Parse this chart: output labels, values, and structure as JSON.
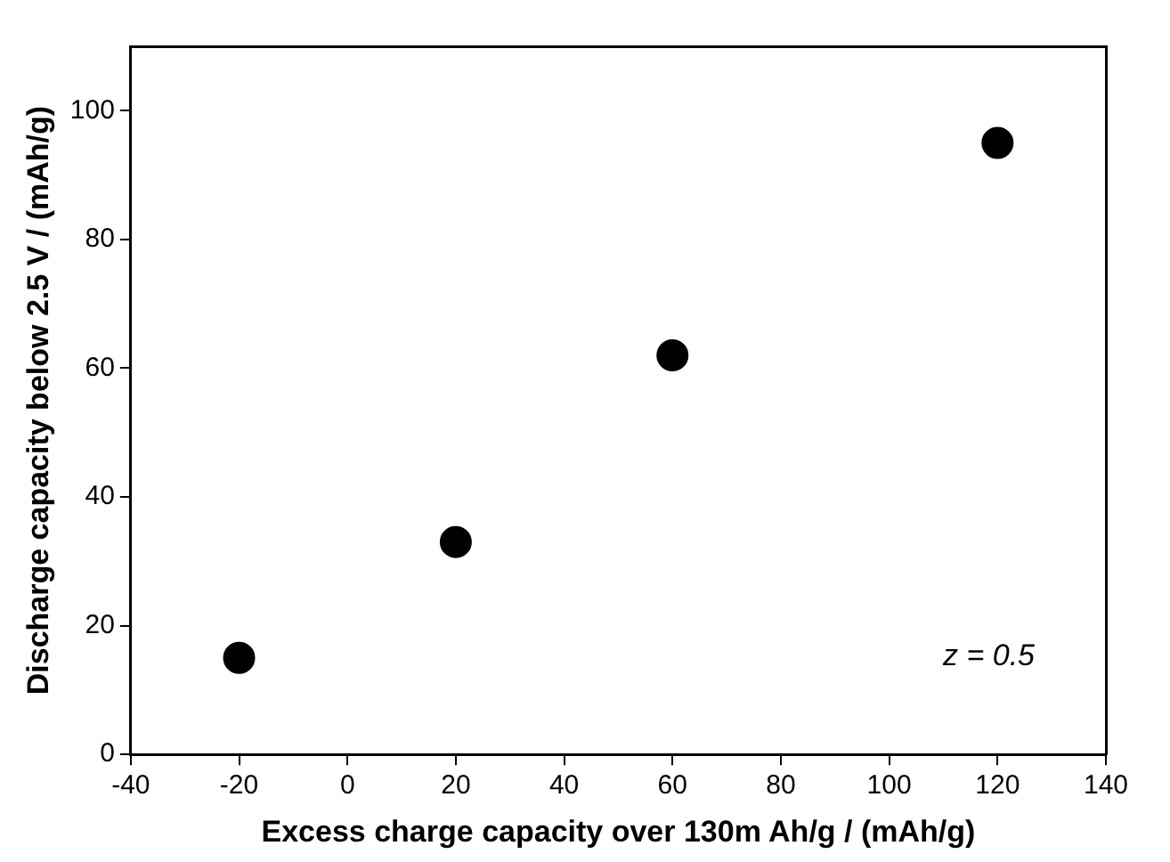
{
  "chart_data": {
    "type": "scatter",
    "xlabel": "Excess charge capacity over 130m Ah/g / (mAh/g)",
    "ylabel": "Discharge capacity below 2.5 V / (mAh/g)",
    "annotations": [
      "z = 0.5"
    ],
    "x": [
      -20,
      20,
      60,
      120
    ],
    "series": [
      {
        "color": "#000000",
        "values": [
          15,
          33,
          62,
          95
        ]
      }
    ],
    "xlim": [
      -40,
      140
    ],
    "xticks": [
      -40,
      -20,
      0,
      20,
      40,
      60,
      80,
      100,
      120,
      140
    ],
    "ylim": [
      0,
      110
    ],
    "yticks": [
      0,
      20,
      40,
      60,
      80,
      100
    ],
    "grid": false,
    "legend": false,
    "marker": "circle"
  }
}
